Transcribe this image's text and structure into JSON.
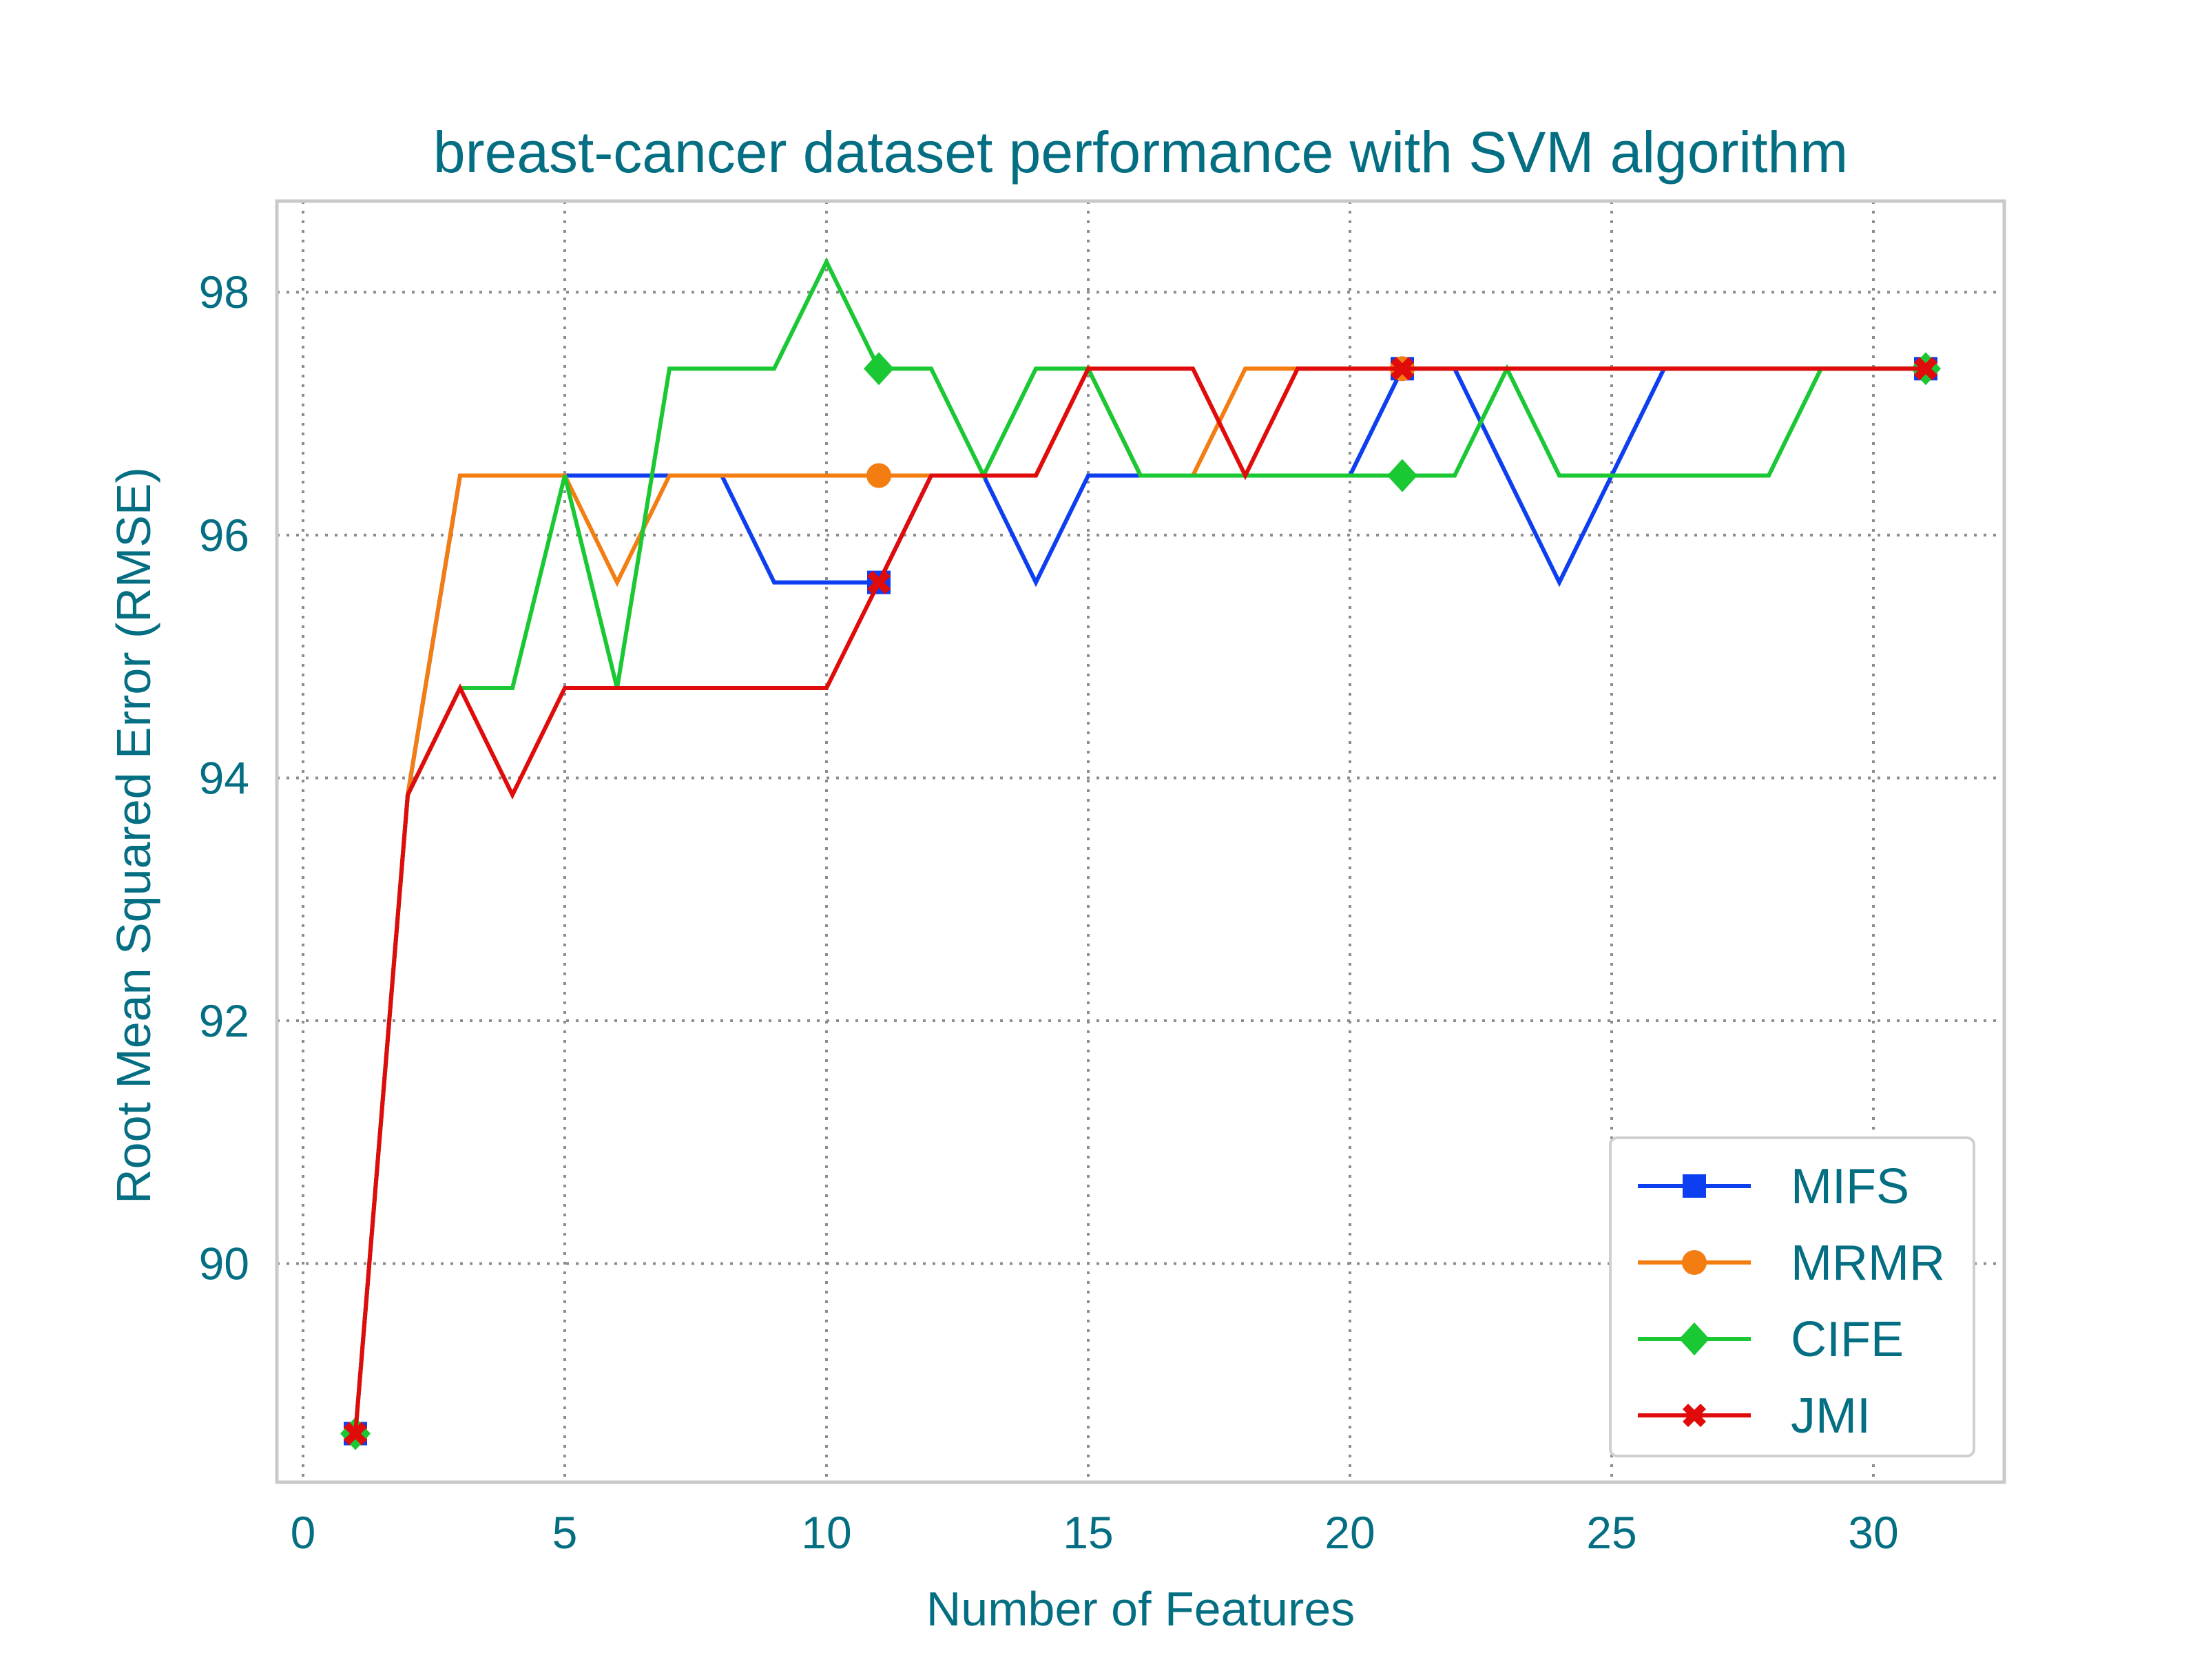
{
  "chart_data": {
    "type": "line",
    "title": "breast-cancer dataset performance with SVM algorithm",
    "xlabel": "Number of Features",
    "ylabel": "Root Mean Squared Error (RMSE)",
    "xlim": [
      -0.5,
      32.5
    ],
    "ylim": [
      88.2,
      98.75
    ],
    "xticks": [
      0,
      5,
      10,
      15,
      20,
      25,
      30
    ],
    "yticks": [
      90,
      92,
      94,
      96,
      98
    ],
    "grid": true,
    "legend_position": "lower-right",
    "x": [
      1,
      2,
      3,
      4,
      5,
      6,
      7,
      8,
      9,
      10,
      11,
      12,
      13,
      14,
      15,
      16,
      17,
      18,
      19,
      20,
      21,
      22,
      23,
      24,
      25,
      26,
      27,
      28,
      29,
      30,
      31
    ],
    "marker_indices": [
      0,
      10,
      20,
      30
    ],
    "series": [
      {
        "name": "MIFS",
        "color": "#0d3ff0",
        "marker": "square",
        "values": [
          88.6,
          93.86,
          96.49,
          96.49,
          96.49,
          96.49,
          96.49,
          96.49,
          95.61,
          95.61,
          95.61,
          96.49,
          96.49,
          95.61,
          96.49,
          96.49,
          96.49,
          96.49,
          96.49,
          96.49,
          97.37,
          97.37,
          96.49,
          95.61,
          96.49,
          97.37,
          97.37,
          97.37,
          97.37,
          97.37,
          97.37
        ]
      },
      {
        "name": "MRMR",
        "color": "#f47d12",
        "marker": "circle",
        "values": [
          88.6,
          93.86,
          96.49,
          96.49,
          96.49,
          95.61,
          96.49,
          96.49,
          96.49,
          96.49,
          96.49,
          96.49,
          96.49,
          96.49,
          97.37,
          96.49,
          96.49,
          97.37,
          97.37,
          97.37,
          97.37,
          97.37,
          97.37,
          97.37,
          97.37,
          97.37,
          97.37,
          97.37,
          97.37,
          97.37,
          97.37
        ]
      },
      {
        "name": "CIFE",
        "color": "#19c832",
        "marker": "diamond",
        "values": [
          88.6,
          93.86,
          94.74,
          94.74,
          96.49,
          94.74,
          97.37,
          97.37,
          97.37,
          98.25,
          97.37,
          97.37,
          96.49,
          97.37,
          97.37,
          96.49,
          96.49,
          96.49,
          96.49,
          96.49,
          96.49,
          96.49,
          97.37,
          96.49,
          96.49,
          96.49,
          96.49,
          96.49,
          97.37,
          97.37,
          97.37
        ]
      },
      {
        "name": "JMI",
        "color": "#e00b0b",
        "marker": "x",
        "values": [
          88.6,
          93.86,
          94.74,
          93.86,
          94.74,
          94.74,
          94.74,
          94.74,
          94.74,
          94.74,
          95.61,
          96.49,
          96.49,
          96.49,
          97.37,
          97.37,
          97.37,
          96.49,
          97.37,
          97.37,
          97.37,
          97.37,
          97.37,
          97.37,
          97.37,
          97.37,
          97.37,
          97.37,
          97.37,
          97.37,
          97.37
        ]
      }
    ]
  }
}
